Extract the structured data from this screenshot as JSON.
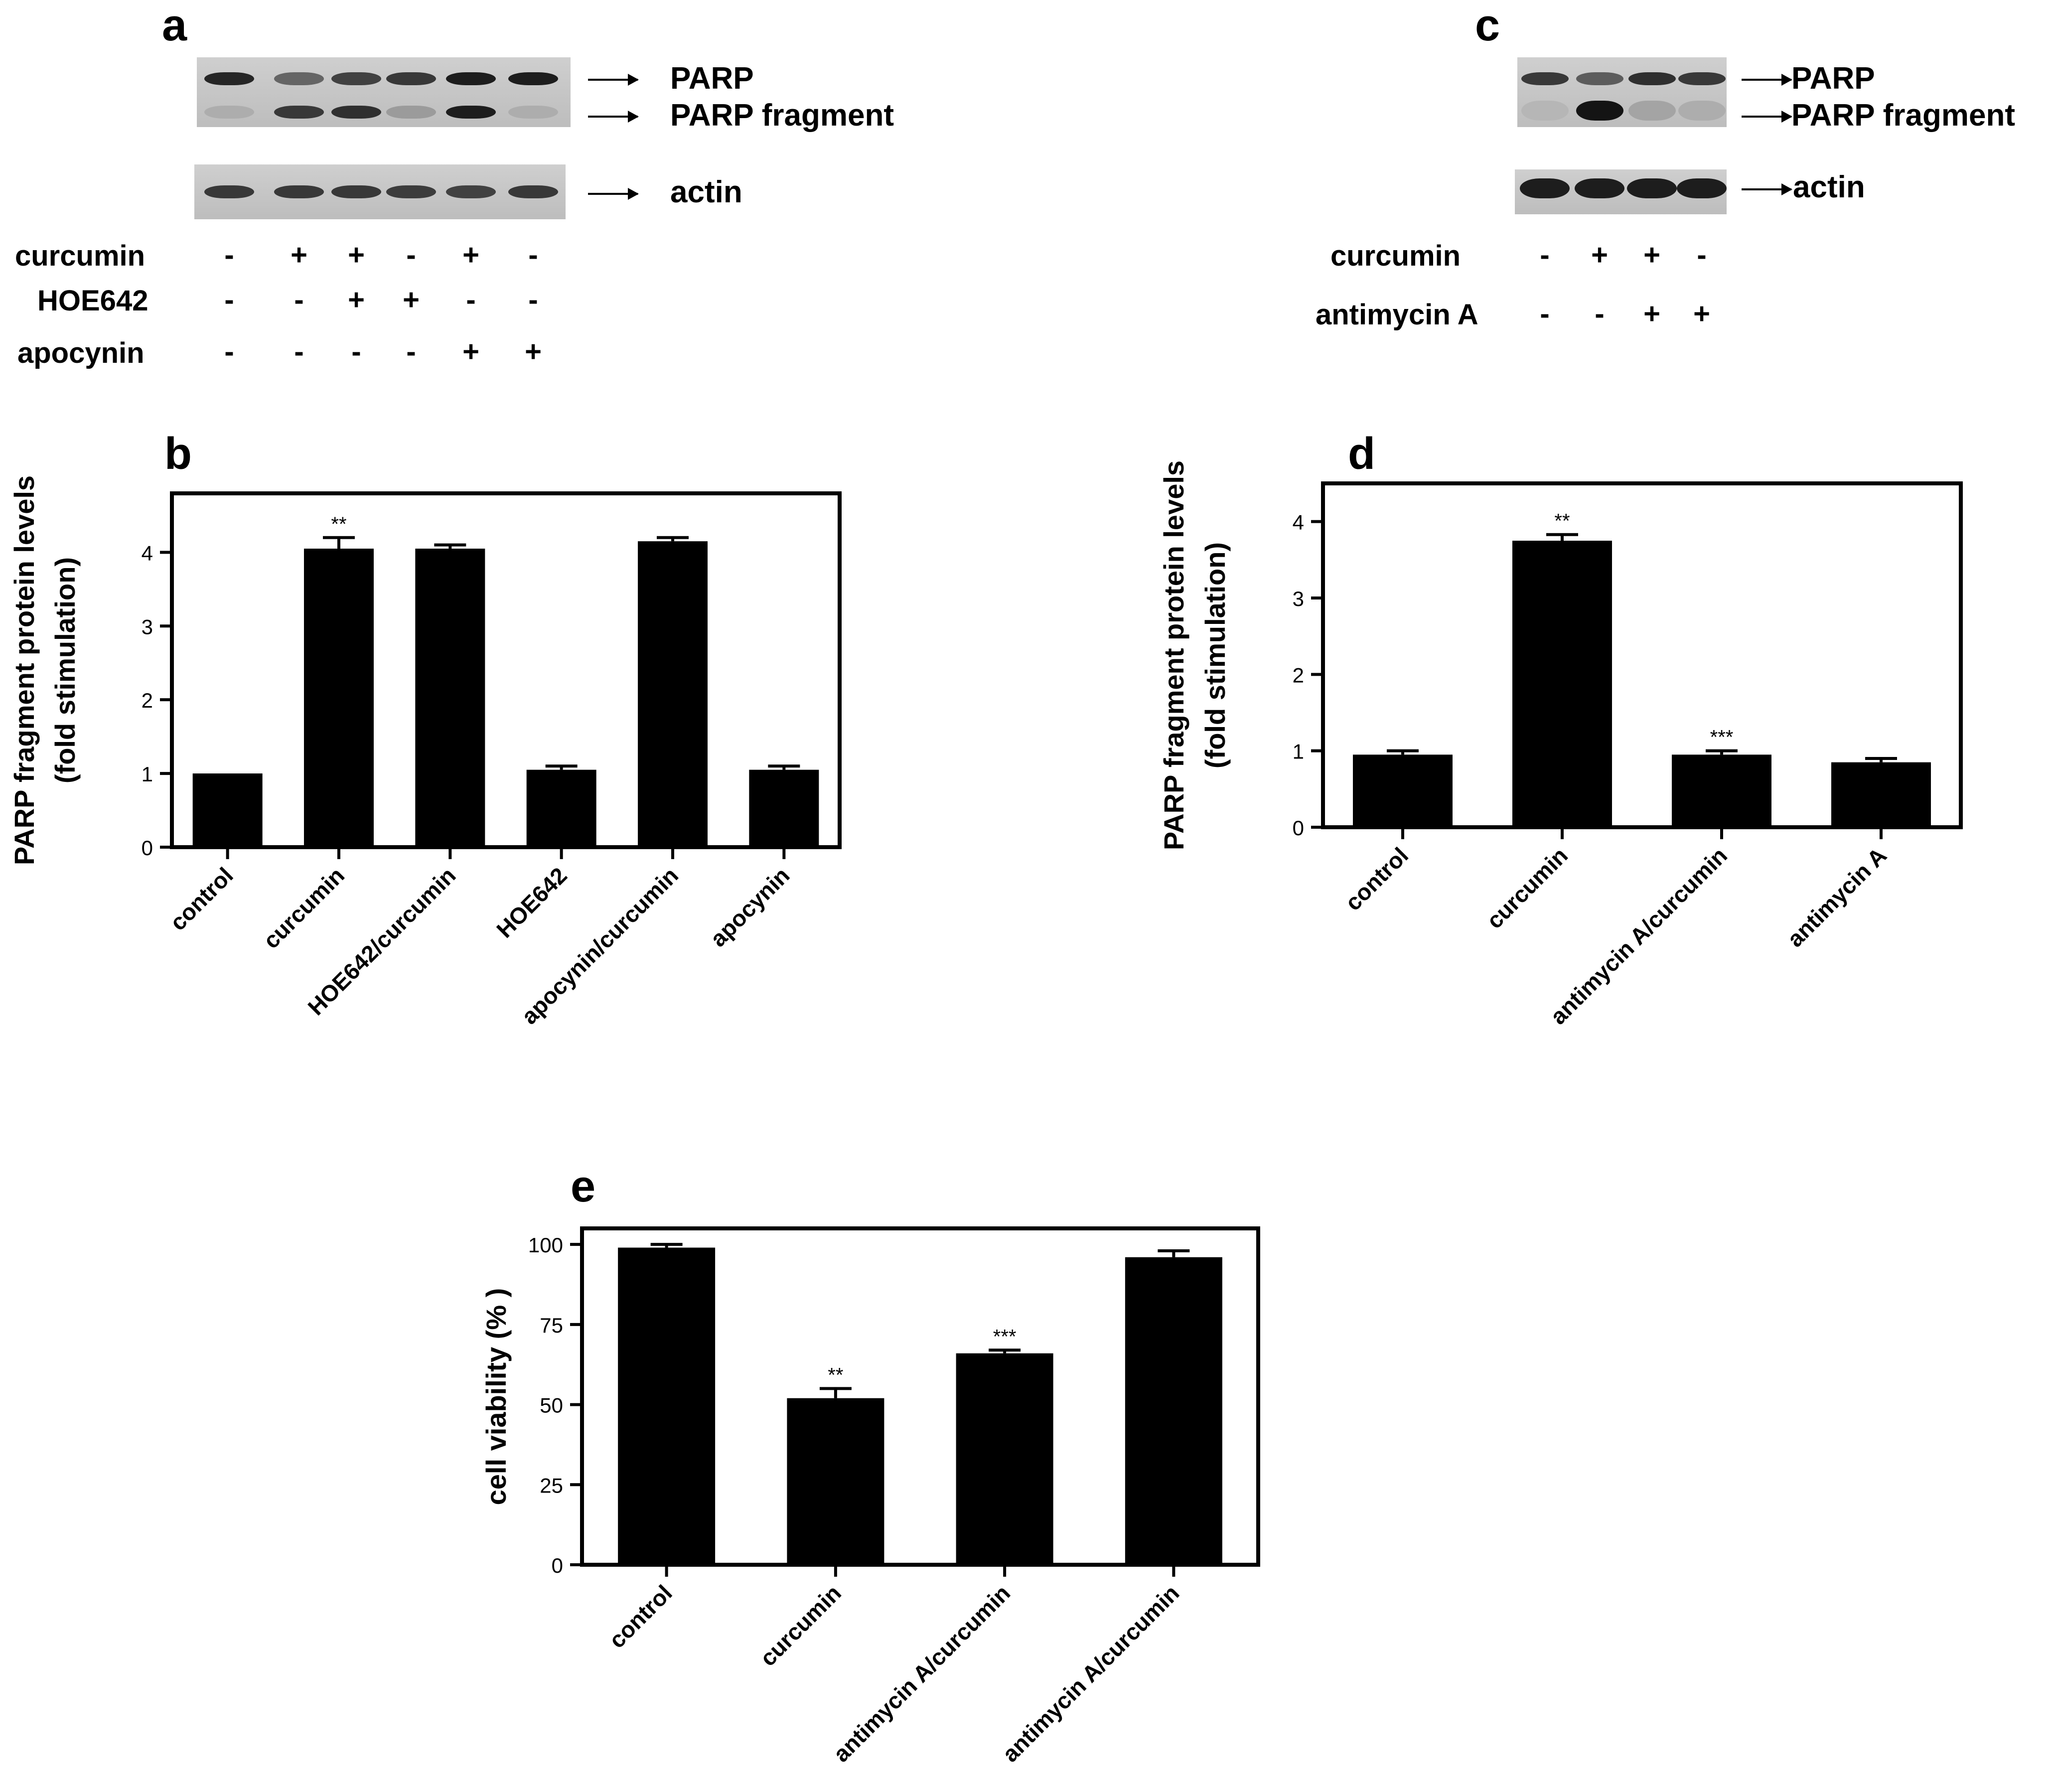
{
  "panels": {
    "a": "a",
    "b": "b",
    "c": "c",
    "d": "d",
    "e": "e"
  },
  "blot_a": {
    "labels": [
      "PARP",
      "PARP fragment",
      "actin"
    ],
    "lanes": 6,
    "band_intensity": {
      "PARP": [
        0.9,
        0.55,
        0.75,
        0.8,
        0.95,
        0.95
      ],
      "PARP fragment": [
        0.15,
        0.8,
        0.85,
        0.25,
        0.95,
        0.15
      ],
      "actin": [
        0.8,
        0.8,
        0.8,
        0.78,
        0.75,
        0.8
      ]
    },
    "treatments": [
      {
        "name": "curcumin",
        "signs": [
          "-",
          "+",
          "+",
          "-",
          "+",
          "-"
        ]
      },
      {
        "name": "HOE642",
        "signs": [
          "-",
          "-",
          "+",
          "+",
          "-",
          "-"
        ]
      },
      {
        "name": "apocynin",
        "signs": [
          "-",
          "-",
          "-",
          "-",
          "+",
          "+"
        ]
      }
    ]
  },
  "blot_c": {
    "labels": [
      "PARP",
      "PARP fragment",
      "actin"
    ],
    "lanes": 4,
    "band_intensity": {
      "PARP": [
        0.8,
        0.6,
        0.85,
        0.8
      ],
      "PARP fragment": [
        0.1,
        1.0,
        0.2,
        0.15
      ],
      "actin": [
        0.95,
        0.95,
        0.95,
        0.95
      ]
    },
    "treatments": [
      {
        "name": "curcumin",
        "signs": [
          "-",
          "+",
          "+",
          "-"
        ]
      },
      {
        "name": "antimycin A",
        "signs": [
          "-",
          "-",
          "+",
          "+"
        ]
      }
    ]
  },
  "chart_data": [
    {
      "panel": "b",
      "type": "bar",
      "categories": [
        "control",
        "curcumin",
        "HOE642/curcumin",
        "HOE642",
        "apocynin/curcumin",
        "apocynin"
      ],
      "values": [
        1.0,
        4.05,
        4.05,
        1.05,
        4.15,
        1.05
      ],
      "errors": [
        0,
        0.15,
        0.05,
        0.05,
        0.05,
        0.05
      ],
      "annotations": [
        "",
        "**",
        "",
        "",
        "",
        ""
      ],
      "ylabel_line1": "PARP fragment protein levels",
      "ylabel_line2": "(fold stimulation)",
      "ylim": [
        0,
        4.8
      ],
      "yticks": [
        "0",
        "1",
        "2",
        "3",
        "4"
      ],
      "color": "#000000"
    },
    {
      "panel": "d",
      "type": "bar",
      "categories": [
        "control",
        "curcumin",
        "antimycin A/curcumin",
        "antimycin A"
      ],
      "values": [
        0.95,
        3.75,
        0.95,
        0.85
      ],
      "errors": [
        0.05,
        0.08,
        0.05,
        0.05
      ],
      "annotations": [
        "",
        "**",
        "***",
        ""
      ],
      "ylabel_line1": "PARP fragment protein levels",
      "ylabel_line2": "(fold stimulation)",
      "ylim": [
        0,
        4.5
      ],
      "yticks": [
        "0",
        "1",
        "2",
        "3",
        "4"
      ],
      "color": "#000000"
    },
    {
      "panel": "e",
      "type": "bar",
      "categories": [
        "control",
        "curcumin",
        "antimycin A/curcumin",
        "antimycin A/curcumin"
      ],
      "values": [
        99,
        52,
        66,
        96
      ],
      "errors": [
        1,
        3,
        1,
        2
      ],
      "annotations": [
        "",
        "**",
        "***",
        ""
      ],
      "ylabel_line1": "cell viability (% )",
      "ylim": [
        0,
        105
      ],
      "yticks": [
        "0",
        "25",
        "50",
        "75",
        "100"
      ],
      "color": "#000000"
    }
  ]
}
